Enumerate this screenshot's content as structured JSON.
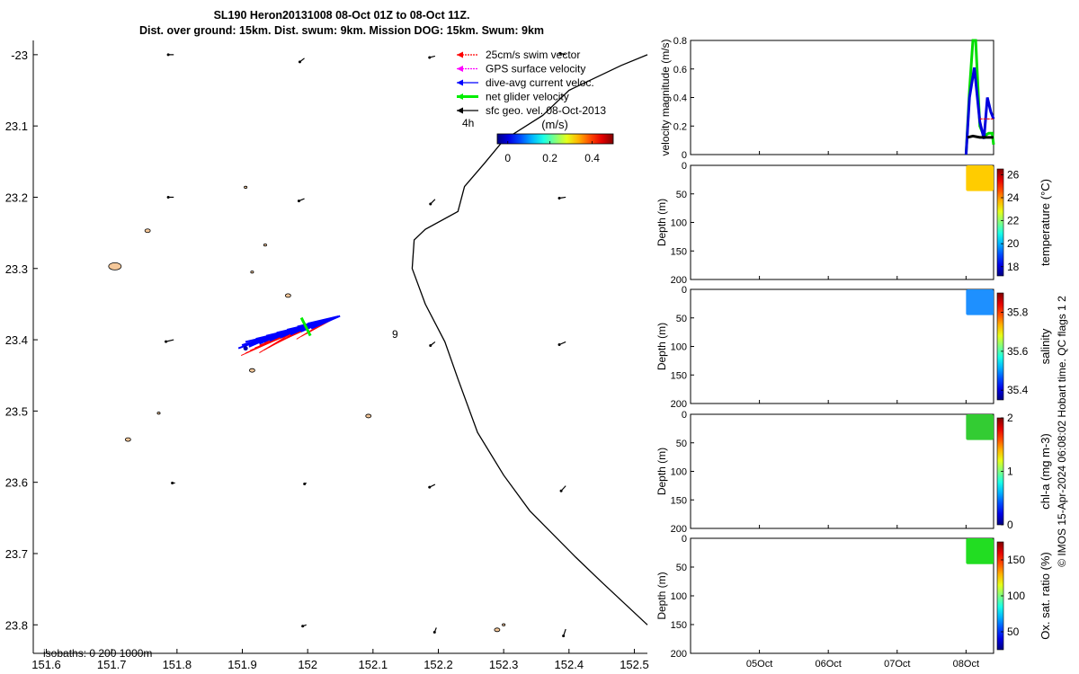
{
  "title": {
    "line1": "SL190 Heron20131008 08-Oct 01Z to 08-Oct 11Z.",
    "line2": "Dist. over ground: 15km. Dist. swum: 9km. Mission DOG: 15km. Swum: 9km"
  },
  "footer": "© IMOS 15-Apr-2024 06:08:02 Hobart time. QC flags 1  2",
  "chart_data": [
    {
      "type": "scatter",
      "panel": "map",
      "xlim": [
        151.58,
        152.52
      ],
      "ylim": [
        -23.84,
        -22.98
      ],
      "x_ticks": [
        151.6,
        151.7,
        151.8,
        151.9,
        152,
        152.1,
        152.2,
        152.3,
        152.4,
        152.5
      ],
      "x_tick_labels": [
        "151.6",
        "151.7",
        "151.8",
        "151.9",
        "152",
        "152.1",
        "152.2",
        "152.3",
        "152.4",
        "152.5"
      ],
      "y_ticks": [
        -23.0,
        -23.1,
        -23.2,
        -23.3,
        -23.4,
        -23.5,
        -23.6,
        -23.7,
        -23.8
      ],
      "y_tick_labels": [
        "-23",
        "23.1",
        "23.2",
        "23.3",
        "23.4",
        "23.5",
        "23.6",
        "23.7",
        "23.8"
      ],
      "legend": {
        "position": "top-right",
        "entries": [
          {
            "label": "25cm/s swim vector",
            "color": "#ff0000"
          },
          {
            "label": "GPS surface velocity",
            "color": "#ff00ff"
          },
          {
            "label": "dive-avg current veloc.",
            "color": "#0000ff"
          },
          {
            "label": "net glider velocity",
            "color": "#00ee00"
          },
          {
            "label": "sfc geo. vel. 08-Oct-2013",
            "color": "#000000"
          }
        ]
      },
      "annotation_4h": "4h",
      "annotation_depth": "9",
      "colorbar": {
        "label": "(m/s)",
        "ticks": [
          0,
          0.2,
          0.4
        ],
        "tick_labels": [
          "0",
          "0.2",
          "0.4"
        ],
        "range": [
          -0.05,
          0.5
        ]
      },
      "isobath_label": "isobaths: 0   200  1000m",
      "track_point": {
        "x": 151.905,
        "y": -23.412
      },
      "coastline": [
        [
          152.52,
          -23.0
        ],
        [
          152.48,
          -23.015
        ],
        [
          152.4,
          -23.05
        ],
        [
          152.36,
          -23.085
        ],
        [
          152.3,
          -23.12
        ],
        [
          152.27,
          -23.153
        ],
        [
          152.24,
          -23.185
        ],
        [
          152.23,
          -23.22
        ],
        [
          152.18,
          -23.245
        ],
        [
          152.163,
          -23.26
        ],
        [
          152.16,
          -23.3
        ],
        [
          152.18,
          -23.35
        ],
        [
          152.21,
          -23.403
        ],
        [
          152.23,
          -23.455
        ],
        [
          152.26,
          -23.53
        ],
        [
          152.3,
          -23.59
        ],
        [
          152.34,
          -23.64
        ],
        [
          152.41,
          -23.705
        ],
        [
          152.45,
          -23.74
        ],
        [
          152.52,
          -23.8
        ]
      ],
      "islands": [
        [
          151.705,
          -23.297
        ],
        [
          151.755,
          -23.247
        ],
        [
          151.725,
          -23.54
        ],
        [
          151.97,
          -23.338
        ],
        [
          151.915,
          -23.443
        ],
        [
          152.093,
          -23.507
        ],
        [
          152.29,
          -23.807
        ],
        [
          151.905,
          -23.186
        ],
        [
          151.935,
          -23.267
        ],
        [
          151.915,
          -23.305
        ],
        [
          151.772,
          -23.503
        ],
        [
          152.3,
          -23.8
        ]
      ],
      "geo_vectors": [
        {
          "x": 151.795,
          "y": -23.0,
          "u": -0.012,
          "v": 0.0
        },
        {
          "x": 151.995,
          "y": -23.005,
          "u": -0.01,
          "v": -0.008
        },
        {
          "x": 152.195,
          "y": -23.002,
          "u": -0.012,
          "v": -0.003
        },
        {
          "x": 152.395,
          "y": -23.0,
          "u": -0.012,
          "v": 0.003
        },
        {
          "x": 151.795,
          "y": -23.2,
          "u": -0.012,
          "v": 0.0
        },
        {
          "x": 151.995,
          "y": -23.202,
          "u": -0.012,
          "v": -0.005
        },
        {
          "x": 152.195,
          "y": -23.203,
          "u": -0.01,
          "v": -0.01
        },
        {
          "x": 152.395,
          "y": -23.2,
          "u": -0.014,
          "v": -0.002
        },
        {
          "x": 151.795,
          "y": -23.4,
          "u": -0.017,
          "v": -0.004
        },
        {
          "x": 152.195,
          "y": -23.403,
          "u": -0.01,
          "v": -0.008
        },
        {
          "x": 152.395,
          "y": -23.403,
          "u": -0.014,
          "v": -0.006
        },
        {
          "x": 151.797,
          "y": -23.601,
          "u": -0.006,
          "v": 0.0
        },
        {
          "x": 151.998,
          "y": -23.601,
          "u": -0.004,
          "v": -0.002
        },
        {
          "x": 152.195,
          "y": -23.603,
          "u": -0.012,
          "v": -0.006
        },
        {
          "x": 152.395,
          "y": -23.605,
          "u": -0.01,
          "v": -0.011
        },
        {
          "x": 151.998,
          "y": -23.8,
          "u": -0.008,
          "v": -0.003
        },
        {
          "x": 152.197,
          "y": -23.804,
          "u": -0.004,
          "v": -0.01
        },
        {
          "x": 152.395,
          "y": -23.806,
          "u": -0.005,
          "v": -0.015
        }
      ]
    },
    {
      "type": "line",
      "panel": "velocity",
      "ylabel": "velocity magnitude (m/s)",
      "ylim": [
        0,
        0.8
      ],
      "y_tick_labels": [
        "0",
        "0.2",
        "0.4",
        "0.6",
        "0.8"
      ],
      "xlim": [
        4.0,
        8.4
      ],
      "x_tick_positions": [
        5,
        6,
        7,
        8
      ],
      "x_tick_labels": [
        "05Oct",
        "06Oct",
        "07Oct",
        "08Oct"
      ],
      "series": [
        {
          "color": "#00dd00",
          "x": [
            8.0,
            8.05,
            8.1,
            8.14,
            8.2,
            8.26,
            8.33,
            8.38,
            8.4
          ],
          "y": [
            0.0,
            0.45,
            0.8,
            0.8,
            0.2,
            0.13,
            0.15,
            0.15,
            0.07
          ]
        },
        {
          "color": "#0000dd",
          "x": [
            8.0,
            8.05,
            8.12,
            8.2,
            8.26,
            8.31,
            8.36,
            8.4
          ],
          "y": [
            0.0,
            0.4,
            0.61,
            0.23,
            0.11,
            0.4,
            0.3,
            0.25
          ]
        },
        {
          "color": "#000000",
          "x": [
            8.02,
            8.1,
            8.2,
            8.3,
            8.4
          ],
          "y": [
            0.12,
            0.13,
            0.12,
            0.12,
            0.12
          ]
        },
        {
          "color": "#ff0000",
          "dashed": true,
          "x": [
            8.2,
            8.4
          ],
          "y": [
            0.25,
            0.25
          ]
        }
      ]
    },
    {
      "type": "heatmap",
      "panel": "temperature",
      "ylabel": "Depth (m)",
      "ylim": [
        200,
        0
      ],
      "y_tick_labels": [
        "0",
        "50",
        "100",
        "150",
        "200"
      ],
      "cbar_label": "temperature (°C)",
      "cbar_ticks": [
        18,
        20,
        22,
        24,
        26
      ],
      "cbar_range": [
        17.2,
        26.5
      ],
      "data_x": [
        8.0,
        8.4
      ],
      "data_depth": [
        0,
        45
      ],
      "value": 24.3,
      "color": "#ffcc00"
    },
    {
      "type": "heatmap",
      "panel": "salinity",
      "ylabel": "Depth (m)",
      "ylim": [
        200,
        0
      ],
      "y_tick_labels": [
        "0",
        "50",
        "100",
        "150",
        "200"
      ],
      "cbar_label": "salinity",
      "cbar_ticks": [
        35.4,
        35.6,
        35.8
      ],
      "cbar_tick_labels": [
        "35.4",
        "35.6",
        "35.8"
      ],
      "cbar_range": [
        35.35,
        35.9
      ],
      "data_x": [
        8.0,
        8.4
      ],
      "data_depth": [
        0,
        45
      ],
      "value": 35.5,
      "color": "#1e90ff"
    },
    {
      "type": "heatmap",
      "panel": "chl-a",
      "ylabel": "Depth (m)",
      "ylim": [
        200,
        0
      ],
      "y_tick_labels": [
        "0",
        "50",
        "100",
        "150",
        "200"
      ],
      "cbar_label": "chl-a (mg m-3)",
      "cbar_ticks": [
        0,
        1,
        2
      ],
      "cbar_range": [
        0,
        2
      ],
      "data_x": [
        8.0,
        8.4
      ],
      "data_depth": [
        0,
        45
      ],
      "value": 0.8,
      "color": "#33cc33"
    },
    {
      "type": "heatmap",
      "panel": "oxygen",
      "ylabel": "Depth (m)",
      "ylim": [
        200,
        0
      ],
      "y_tick_labels": [
        "0",
        "50",
        "100",
        "150",
        "200"
      ],
      "cbar_label": "Ox. sat. ratio (%)",
      "cbar_ticks": [
        50,
        100,
        150
      ],
      "cbar_range": [
        25,
        175
      ],
      "data_x": [
        8.0,
        8.4
      ],
      "data_depth": [
        0,
        45
      ],
      "value": 100,
      "color": "#22dd22"
    }
  ]
}
